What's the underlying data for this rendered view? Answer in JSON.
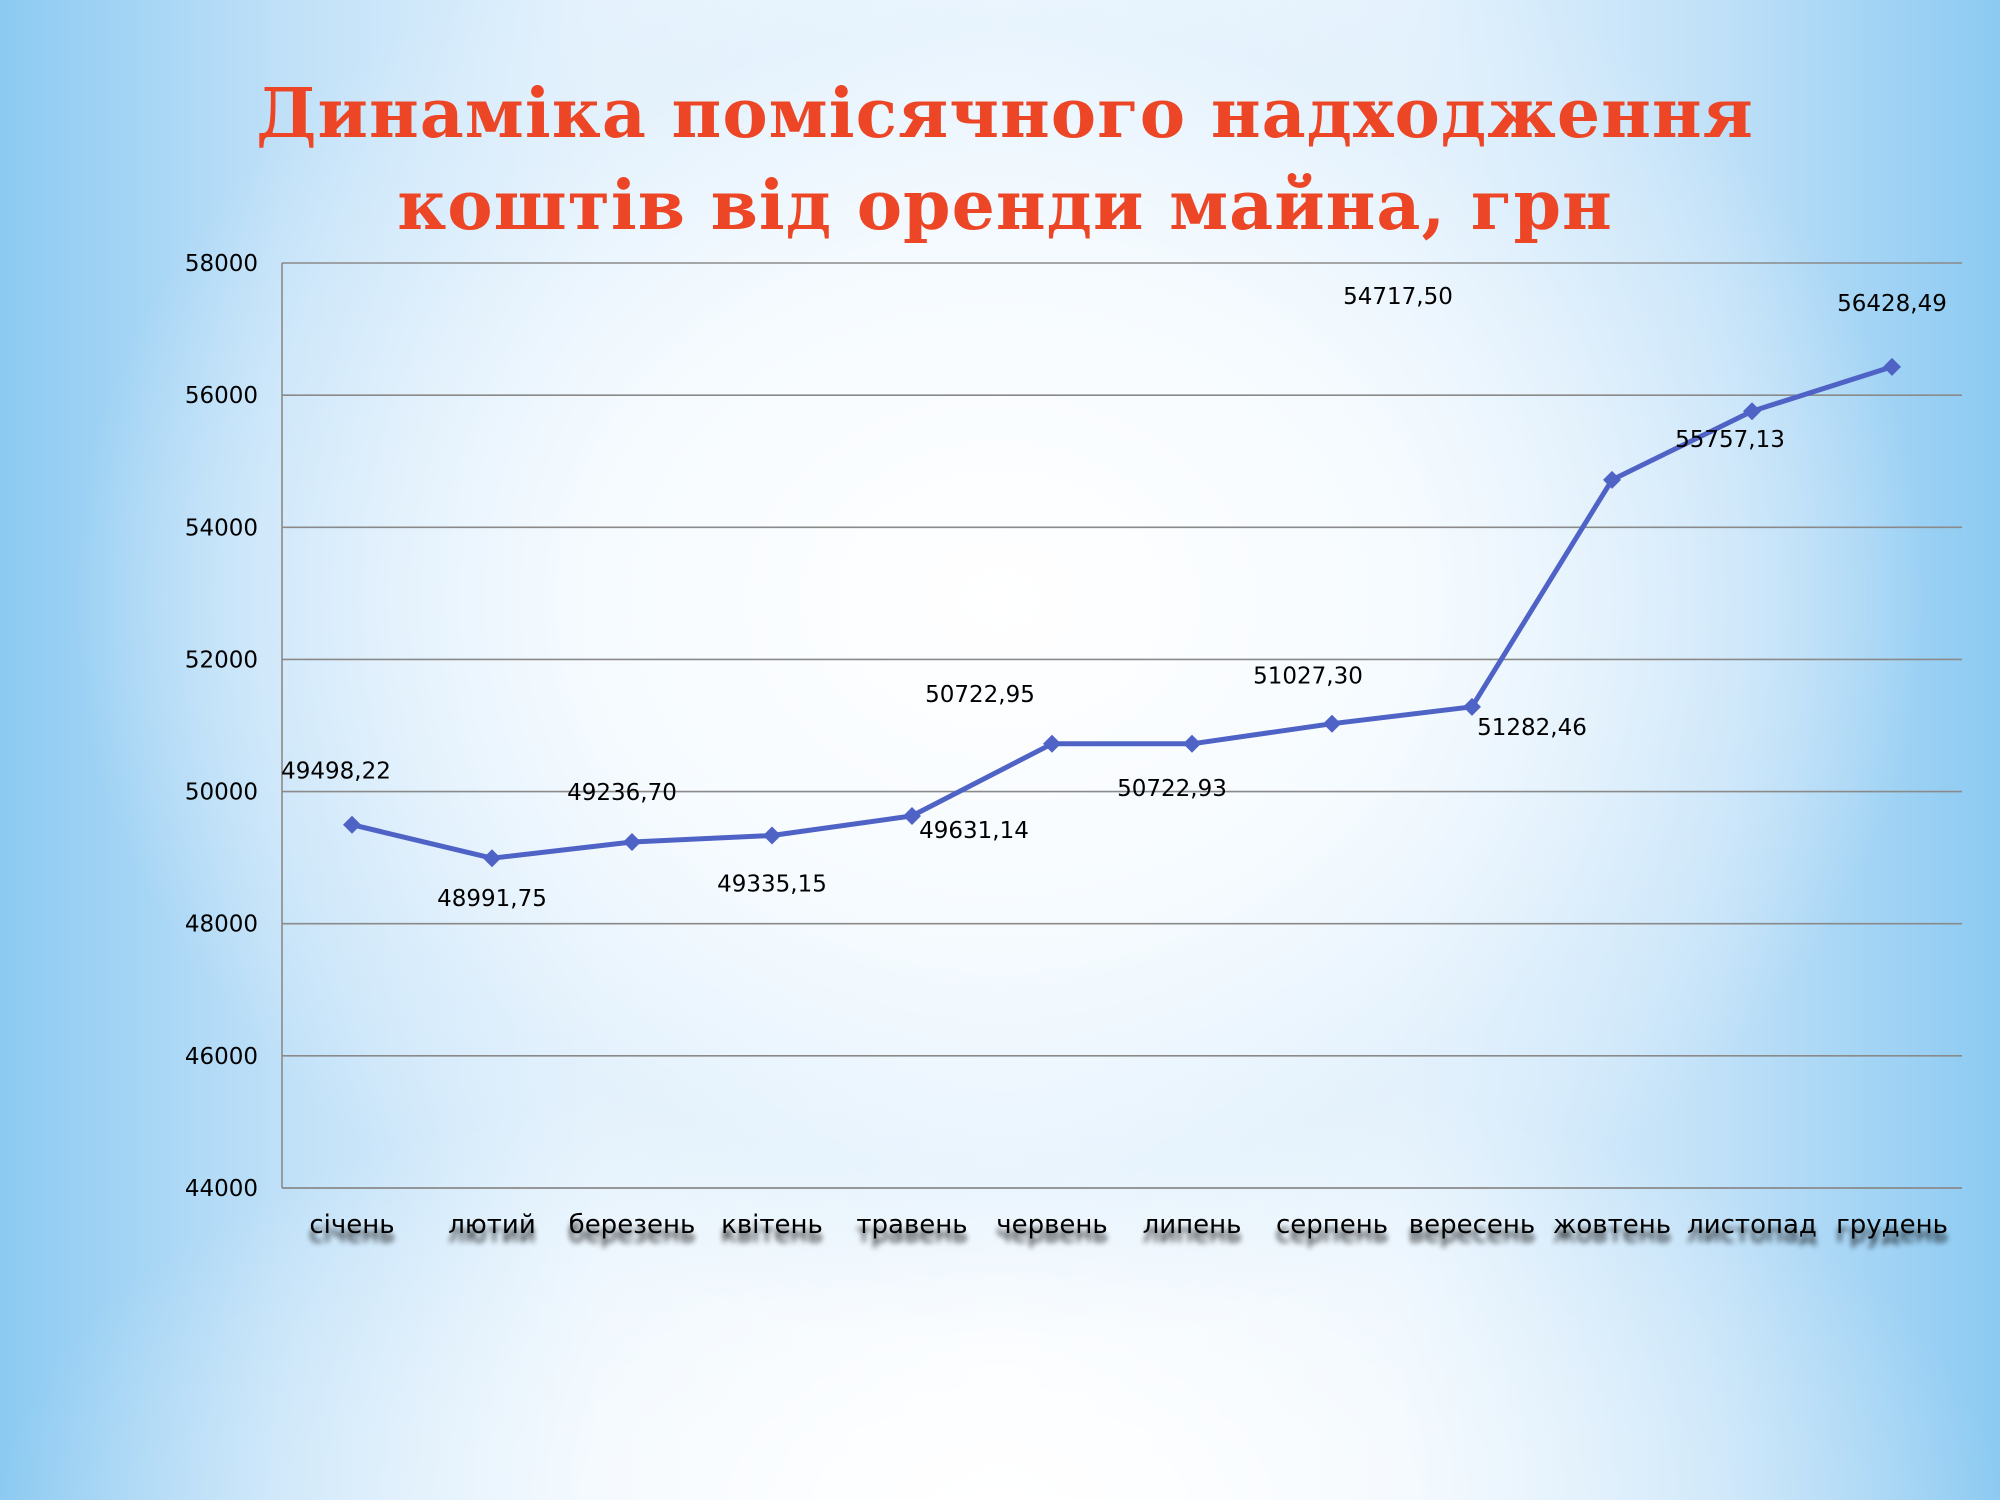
{
  "title_line1": "Динаміка  помісячного надходження",
  "title_line2": "коштів від оренди майна, грн",
  "colors": {
    "title": "#ec4626",
    "series": "#4f63c6",
    "grid": "#8a8a8a"
  },
  "chart_data": {
    "type": "line",
    "title": "Динаміка  помісячного надходження коштів від оренди майна, грн",
    "categories": [
      "січень",
      "лютий",
      "березень",
      "квітень",
      "травень",
      "червень",
      "липень",
      "серпень",
      "вересень",
      "жовтень",
      "листопад",
      "грудень"
    ],
    "series": [
      {
        "values": [
          49498.22,
          48991.75,
          49236.7,
          49335.15,
          49631.14,
          50722.95,
          50722.93,
          51027.3,
          51282.46,
          54717.5,
          55757.13,
          56428.49
        ]
      }
    ],
    "data_labels": [
      "49498,22",
      "48991,75",
      "49236,70",
      "49335,15",
      "49631,14",
      "50722,95",
      "50722,93",
      "51027,30",
      "51282,46",
      "54717,50",
      "55757,13",
      "56428,49"
    ],
    "label_positions": [
      "above",
      "below",
      "above",
      "below",
      "below",
      "above",
      "below",
      "above",
      "below",
      "above",
      "below",
      "above"
    ],
    "yticks": [
      "58000",
      "56000",
      "54000",
      "52000",
      "50000",
      "48000",
      "46000",
      "44000"
    ],
    "ylim": [
      44000,
      58000
    ],
    "grid": true,
    "marker": "diamond",
    "legend": "none"
  }
}
